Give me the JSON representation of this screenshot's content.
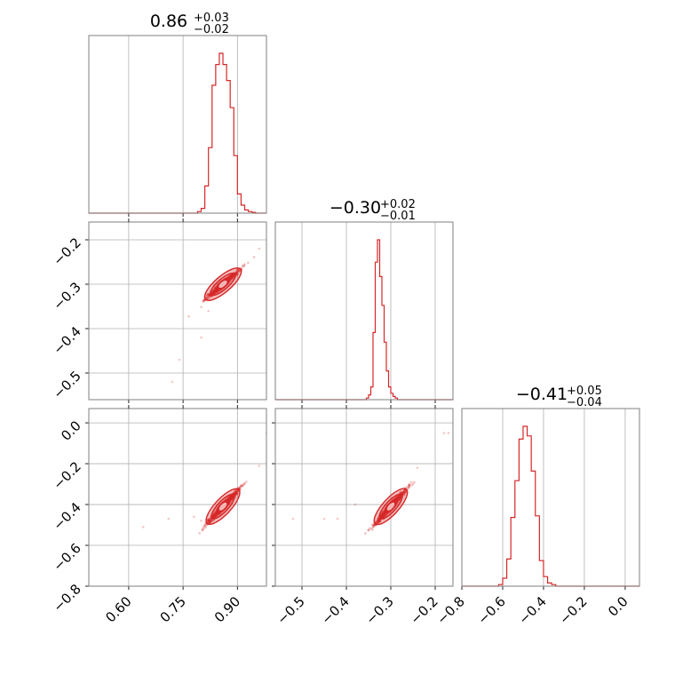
{
  "chart_data": {
    "type": "corner",
    "color": "#d62728",
    "parameters": [
      {
        "median": "0.86",
        "plus": "+0.03",
        "minus": "−0.02",
        "range": [
          0.49,
          0.98
        ],
        "ticks": [
          {
            "v": 0.6,
            "label": "0.60"
          },
          {
            "v": 0.75,
            "label": "0.75"
          },
          {
            "v": 0.9,
            "label": "0.90"
          }
        ]
      },
      {
        "median": "−0.30",
        "plus": "+0.02",
        "minus": "−0.01",
        "range": [
          -0.56,
          -0.16
        ],
        "ticks": [
          {
            "v": -0.5,
            "label": "−0.5"
          },
          {
            "v": -0.4,
            "label": "−0.4"
          },
          {
            "v": -0.3,
            "label": "−0.3"
          },
          {
            "v": -0.2,
            "label": "−0.2"
          }
        ]
      },
      {
        "median": "−0.41",
        "plus": "+0.05",
        "minus": "−0.04",
        "range": [
          -0.8,
          0.07
        ],
        "ticks": [
          {
            "v": -0.8,
            "label": "−0.8"
          },
          {
            "v": -0.6,
            "label": "−0.6"
          },
          {
            "v": -0.4,
            "label": "−0.4"
          },
          {
            "v": -0.2,
            "label": "−0.2"
          },
          {
            "v": 0.0,
            "label": "0.0"
          }
        ]
      }
    ],
    "histograms": [
      {
        "bin_width": 0.01,
        "start": 0.79,
        "counts": [
          0.01,
          0.03,
          0.17,
          0.41,
          0.8,
          0.93,
          1.0,
          0.93,
          0.83,
          0.66,
          0.36,
          0.12,
          0.05,
          0.02,
          0.01,
          0.005
        ]
      },
      {
        "bin_width": 0.005,
        "start": -0.355,
        "counts": [
          0.01,
          0.03,
          0.08,
          0.42,
          0.86,
          1.0,
          0.77,
          0.59,
          0.36,
          0.18,
          0.08,
          0.04,
          0.02,
          0.01
        ]
      },
      {
        "bin_width": 0.02,
        "start": -0.62,
        "counts": [
          0.01,
          0.05,
          0.17,
          0.43,
          0.66,
          0.92,
          1.0,
          0.94,
          0.72,
          0.44,
          0.16,
          0.06,
          0.02,
          0.01
        ]
      }
    ],
    "correlations": [
      {
        "row": 1,
        "col": 0,
        "center": [
          0.86,
          -0.3
        ],
        "slope": 0.7,
        "outliers": [
          [
            0.72,
            -0.52
          ],
          [
            0.74,
            -0.47
          ],
          [
            0.8,
            -0.42
          ],
          [
            0.82,
            -0.36
          ],
          [
            0.96,
            -0.22
          ]
        ]
      },
      {
        "row": 2,
        "col": 0,
        "center": [
          0.86,
          -0.41
        ],
        "slope": 1.9,
        "outliers": [
          [
            0.64,
            -0.51
          ],
          [
            0.71,
            -0.47
          ],
          [
            0.78,
            -0.46
          ],
          [
            0.8,
            -0.48
          ],
          [
            0.96,
            -0.21
          ],
          [
            0.98,
            -0.05
          ]
        ]
      },
      {
        "row": 2,
        "col": 1,
        "center": [
          -0.3,
          -0.41
        ],
        "slope": 2.4,
        "outliers": [
          [
            -0.52,
            -0.47
          ],
          [
            -0.45,
            -0.47
          ],
          [
            -0.42,
            -0.47
          ],
          [
            -0.38,
            -0.4
          ],
          [
            -0.24,
            -0.22
          ],
          [
            -0.18,
            -0.05
          ],
          [
            -0.17,
            -0.05
          ]
        ]
      }
    ]
  }
}
